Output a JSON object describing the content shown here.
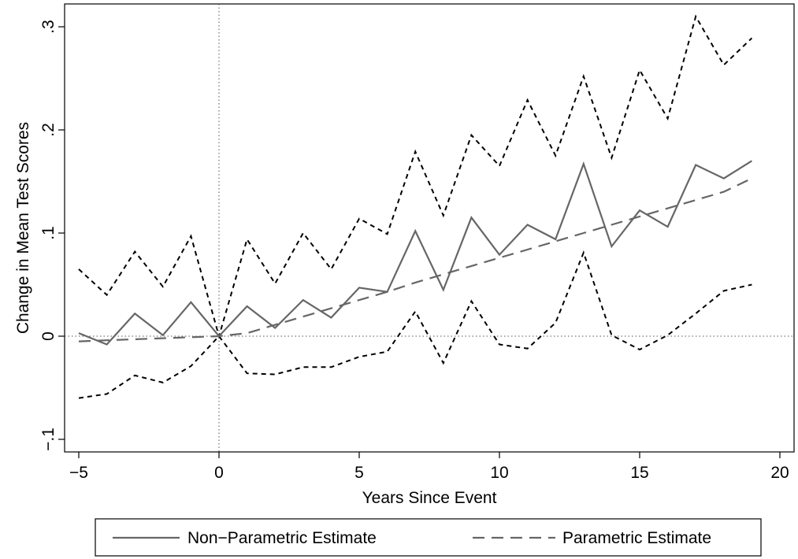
{
  "chart_data": {
    "type": "line",
    "title": "",
    "xlabel": "Years Since Event",
    "ylabel": "Change in Mean Test Scores",
    "xlim": [
      -5,
      20
    ],
    "ylim": [
      -0.1,
      0.3
    ],
    "x_ticks": [
      -5,
      0,
      5,
      10,
      15,
      20
    ],
    "x_tick_labels": [
      "−5",
      "0",
      "5",
      "10",
      "15",
      "20"
    ],
    "y_ticks": [
      -0.1,
      0,
      0.1,
      0.2,
      0.3
    ],
    "y_tick_labels": [
      "−.1",
      "0",
      ".1",
      ".2",
      ".3"
    ],
    "reference_lines": {
      "x": 0,
      "y": 0
    },
    "grid": false,
    "legend_position": "bottom",
    "x": [
      -5,
      -4,
      -3,
      -2,
      -1,
      0,
      1,
      2,
      3,
      4,
      5,
      6,
      7,
      8,
      9,
      10,
      11,
      12,
      13,
      14,
      15,
      16,
      17,
      18,
      19
    ],
    "series": [
      {
        "name": "Non−Parametric Estimate",
        "style": "solid",
        "color": "#666666",
        "values": [
          0.003,
          -0.008,
          0.022,
          0.001,
          0.033,
          0.0,
          0.029,
          0.008,
          0.035,
          0.018,
          0.047,
          0.043,
          0.102,
          0.045,
          0.115,
          0.079,
          0.108,
          0.094,
          0.167,
          0.087,
          0.122,
          0.106,
          0.166,
          0.153,
          0.17
        ]
      },
      {
        "name": "Parametric Estimate",
        "style": "longdash",
        "color": "#666666",
        "values": [
          -0.005,
          -0.004,
          -0.003,
          -0.002,
          -0.001,
          0.0,
          0.003,
          0.011,
          0.019,
          0.027,
          0.035,
          0.043,
          0.052,
          0.06,
          0.068,
          0.076,
          0.084,
          0.092,
          0.1,
          0.108,
          0.116,
          0.124,
          0.132,
          0.14,
          0.153
        ]
      },
      {
        "name": "",
        "style": "shortdash",
        "color": "#000000",
        "values": [
          0.065,
          0.04,
          0.082,
          0.048,
          0.097,
          0.0,
          0.094,
          0.051,
          0.1,
          0.065,
          0.114,
          0.099,
          0.179,
          0.117,
          0.195,
          0.165,
          0.229,
          0.175,
          0.252,
          0.173,
          0.258,
          0.211,
          0.31,
          0.263,
          0.289
        ]
      },
      {
        "name": "",
        "style": "shortdash",
        "color": "#000000",
        "values": [
          -0.06,
          -0.056,
          -0.038,
          -0.045,
          -0.029,
          0.0,
          -0.036,
          -0.037,
          -0.03,
          -0.03,
          -0.02,
          -0.015,
          0.024,
          -0.026,
          0.034,
          -0.008,
          -0.012,
          0.013,
          0.081,
          0.001,
          -0.013,
          0.001,
          0.022,
          0.044,
          0.05
        ]
      }
    ],
    "legend": [
      {
        "label": "Non−Parametric Estimate",
        "style": "solid"
      },
      {
        "label": "Parametric Estimate",
        "style": "longdash"
      }
    ]
  }
}
